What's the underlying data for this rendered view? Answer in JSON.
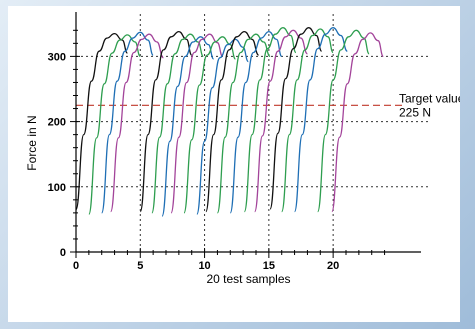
{
  "chart_data": {
    "type": "line",
    "xlabel": "20 test samples",
    "ylabel": "Force in N",
    "xlim": [
      0,
      24.5
    ],
    "ylim": [
      0,
      365
    ],
    "x_ticks": [
      0,
      5,
      10,
      15,
      20
    ],
    "y_ticks": [
      0,
      100,
      200,
      300
    ],
    "x_tick_labels": [
      "0",
      "5",
      "10",
      "15",
      "20"
    ],
    "y_tick_labels": [
      "0",
      "100",
      "200",
      "300"
    ],
    "grid": "dotted at x = 5, 10, 15, 20 and y = 100, 200, 300",
    "target": {
      "value": 225,
      "label_line1": "Target value",
      "label_line2": "225 N",
      "color": "#c0392b"
    },
    "series": [
      {
        "color": "#111111",
        "x": [
          0.0,
          0.6,
          1.2,
          1.8,
          2.4,
          3.0,
          3.6,
          4.0
        ],
        "y": [
          65,
          180,
          262,
          308,
          328,
          335,
          325,
          305
        ]
      },
      {
        "color": "#2e9e4f",
        "x": [
          1.0,
          1.6,
          2.2,
          2.8,
          3.4,
          4.0,
          4.6,
          5.0
        ],
        "y": [
          58,
          175,
          258,
          305,
          325,
          333,
          322,
          300
        ]
      },
      {
        "color": "#1f6fb5",
        "x": [
          2.0,
          2.6,
          3.2,
          3.8,
          4.4,
          5.0,
          5.6,
          6.0
        ],
        "y": [
          60,
          180,
          262,
          308,
          328,
          337,
          325,
          302
        ]
      },
      {
        "color": "#a3449a",
        "x": [
          2.7,
          3.3,
          3.9,
          4.5,
          5.1,
          5.7,
          6.3,
          6.8
        ],
        "y": [
          62,
          175,
          260,
          306,
          326,
          334,
          322,
          298
        ]
      },
      {
        "color": "#111111",
        "x": [
          5.0,
          5.6,
          6.2,
          6.8,
          7.4,
          8.0,
          8.6,
          9.0
        ],
        "y": [
          62,
          180,
          264,
          310,
          330,
          338,
          326,
          302
        ]
      },
      {
        "color": "#2e9e4f",
        "x": [
          5.9,
          6.5,
          7.1,
          7.7,
          8.3,
          8.9,
          9.5,
          9.9
        ],
        "y": [
          60,
          176,
          258,
          304,
          326,
          334,
          322,
          300
        ]
      },
      {
        "color": "#1f6fb5",
        "x": [
          6.7,
          7.3,
          7.9,
          8.5,
          9.1,
          9.7,
          10.3,
          10.7
        ],
        "y": [
          55,
          170,
          254,
          300,
          322,
          330,
          318,
          296
        ]
      },
      {
        "color": "#a3449a",
        "x": [
          7.4,
          8.0,
          8.6,
          9.2,
          9.8,
          10.4,
          11.0,
          11.4
        ],
        "y": [
          60,
          176,
          260,
          306,
          326,
          334,
          321,
          300
        ]
      },
      {
        "color": "#2e9e4f",
        "x": [
          8.4,
          9.0,
          9.6,
          10.2,
          10.8,
          11.4,
          12.0,
          12.4
        ],
        "y": [
          60,
          172,
          256,
          302,
          322,
          330,
          318,
          296
        ]
      },
      {
        "color": "#1f6fb5",
        "x": [
          9.4,
          10.0,
          10.6,
          11.2,
          11.8,
          12.4,
          13.0,
          13.4
        ],
        "y": [
          58,
          170,
          252,
          298,
          318,
          326,
          314,
          292
        ]
      },
      {
        "color": "#111111",
        "x": [
          10.1,
          10.7,
          11.3,
          11.9,
          12.5,
          13.1,
          13.7,
          14.2
        ],
        "y": [
          62,
          180,
          264,
          310,
          330,
          338,
          326,
          302
        ]
      },
      {
        "color": "#2e9e4f",
        "x": [
          11.0,
          11.6,
          12.2,
          12.8,
          13.4,
          14.0,
          14.6,
          15.1
        ],
        "y": [
          60,
          176,
          260,
          306,
          326,
          334,
          322,
          300
        ]
      },
      {
        "color": "#1f6fb5",
        "x": [
          12.0,
          12.6,
          13.2,
          13.8,
          14.4,
          15.0,
          15.6,
          16.0
        ],
        "y": [
          60,
          176,
          260,
          306,
          328,
          338,
          326,
          300
        ]
      },
      {
        "color": "#2e9e4f",
        "x": [
          13.1,
          13.7,
          14.3,
          14.9,
          15.5,
          16.1,
          16.7,
          17.1
        ],
        "y": [
          62,
          180,
          264,
          312,
          334,
          344,
          332,
          306
        ]
      },
      {
        "color": "#a3449a",
        "x": [
          13.9,
          14.5,
          15.1,
          15.7,
          16.3,
          16.9,
          17.5,
          18.0
        ],
        "y": [
          62,
          178,
          262,
          308,
          330,
          340,
          328,
          304
        ]
      },
      {
        "color": "#111111",
        "x": [
          15.1,
          15.7,
          16.3,
          16.9,
          17.5,
          18.1,
          18.7,
          19.1
        ],
        "y": [
          66,
          182,
          266,
          312,
          334,
          344,
          332,
          308
        ]
      },
      {
        "color": "#2e9e4f",
        "x": [
          16.0,
          16.6,
          17.2,
          17.8,
          18.4,
          19.0,
          19.6,
          20.0
        ],
        "y": [
          62,
          180,
          264,
          310,
          332,
          342,
          330,
          306
        ]
      },
      {
        "color": "#1f6fb5",
        "x": [
          17.0,
          17.6,
          18.2,
          18.8,
          19.4,
          20.0,
          20.6,
          21.1
        ],
        "y": [
          62,
          180,
          264,
          312,
          334,
          344,
          332,
          308
        ]
      },
      {
        "color": "#2e9e4f",
        "x": [
          18.8,
          19.4,
          20.0,
          20.6,
          21.2,
          21.8,
          22.4,
          22.8
        ],
        "y": [
          62,
          180,
          264,
          310,
          330,
          340,
          328,
          304
        ]
      },
      {
        "color": "#a3449a",
        "x": [
          19.9,
          20.5,
          21.1,
          21.7,
          22.3,
          22.9,
          23.5,
          23.9
        ],
        "y": [
          62,
          176,
          258,
          304,
          326,
          336,
          324,
          300
        ]
      }
    ]
  }
}
